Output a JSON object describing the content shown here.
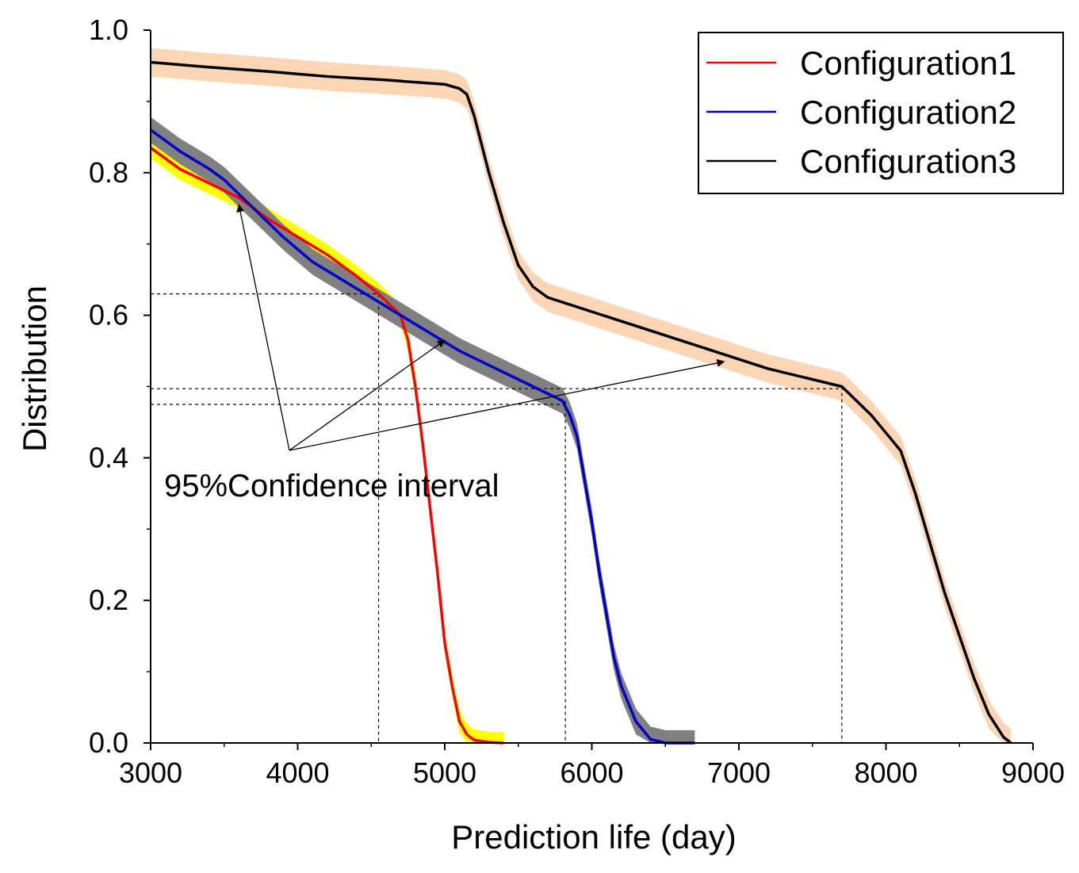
{
  "chart_data": {
    "type": "line",
    "xlabel": "Prediction life (day)",
    "ylabel": "Distribution",
    "xlim": [
      3000,
      9000
    ],
    "ylim": [
      0,
      1.0
    ],
    "xticks": [
      3000,
      4000,
      5000,
      6000,
      7000,
      8000,
      9000
    ],
    "xtick_labels": [
      "3000",
      "4000",
      "5000",
      "6000",
      "7000",
      "8000",
      "9000"
    ],
    "yticks": [
      0,
      0.2,
      0.4,
      0.6,
      0.8,
      1.0
    ],
    "ytick_labels": [
      "0.0",
      "0.2",
      "0.4",
      "0.6",
      "0.8",
      "1.0"
    ],
    "grid": false,
    "legend_position": "top-right",
    "annotation": "95%Confidence interval",
    "series": [
      {
        "name": "Configuration1",
        "color": "#ff0000",
        "band_color": "#ffff00",
        "band_halfwidth": 0.015,
        "x": [
          3000,
          3200,
          3400,
          3600,
          3800,
          4000,
          4200,
          4400,
          4550,
          4650,
          4700,
          4750,
          4800,
          4850,
          4900,
          4950,
          5000,
          5050,
          5100,
          5150,
          5200,
          5300,
          5400
        ],
        "y": [
          0.835,
          0.805,
          0.785,
          0.765,
          0.735,
          0.71,
          0.685,
          0.655,
          0.63,
          0.61,
          0.6,
          0.565,
          0.5,
          0.42,
          0.33,
          0.24,
          0.14,
          0.08,
          0.03,
          0.012,
          0.004,
          0.001,
          0.0
        ]
      },
      {
        "name": "Configuration2",
        "color": "#0000cc",
        "band_color": "#808080",
        "band_halfwidth": 0.018,
        "x": [
          3000,
          3200,
          3400,
          3500,
          3700,
          3900,
          4100,
          4300,
          4500,
          4700,
          4900,
          5100,
          5300,
          5500,
          5700,
          5800,
          5850,
          5900,
          5950,
          6000,
          6050,
          6100,
          6150,
          6200,
          6300,
          6400,
          6500,
          6700
        ],
        "y": [
          0.86,
          0.83,
          0.805,
          0.79,
          0.75,
          0.71,
          0.675,
          0.65,
          0.625,
          0.6,
          0.575,
          0.55,
          0.53,
          0.51,
          0.49,
          0.48,
          0.46,
          0.43,
          0.37,
          0.31,
          0.24,
          0.18,
          0.12,
          0.08,
          0.03,
          0.005,
          0.0,
          0.0
        ]
      },
      {
        "name": "Configuration3",
        "color": "#000000",
        "band_color": "#fcd5b4",
        "band_halfwidth": 0.02,
        "x": [
          3000,
          3400,
          3800,
          4200,
          4600,
          5000,
          5100,
          5150,
          5200,
          5300,
          5400,
          5500,
          5600,
          5700,
          6000,
          6300,
          6600,
          6900,
          7200,
          7500,
          7700,
          7800,
          7900,
          8000,
          8100,
          8200,
          8300,
          8400,
          8500,
          8600,
          8700,
          8800,
          8850
        ],
        "y": [
          0.955,
          0.948,
          0.942,
          0.935,
          0.93,
          0.924,
          0.918,
          0.91,
          0.88,
          0.8,
          0.73,
          0.67,
          0.64,
          0.625,
          0.605,
          0.585,
          0.565,
          0.545,
          0.525,
          0.51,
          0.5,
          0.48,
          0.46,
          0.435,
          0.41,
          0.35,
          0.28,
          0.21,
          0.15,
          0.09,
          0.04,
          0.008,
          0.0
        ]
      }
    ],
    "reference_lines": {
      "horizontal": [
        0.63,
        0.497,
        0.475
      ],
      "vertical": [
        4550,
        5820,
        7700
      ]
    },
    "annotation_arrows": [
      {
        "to_x": 3600,
        "to_y": 0.755
      },
      {
        "to_x": 5000,
        "to_y": 0.565
      },
      {
        "to_x": 6900,
        "to_y": 0.535
      }
    ]
  }
}
